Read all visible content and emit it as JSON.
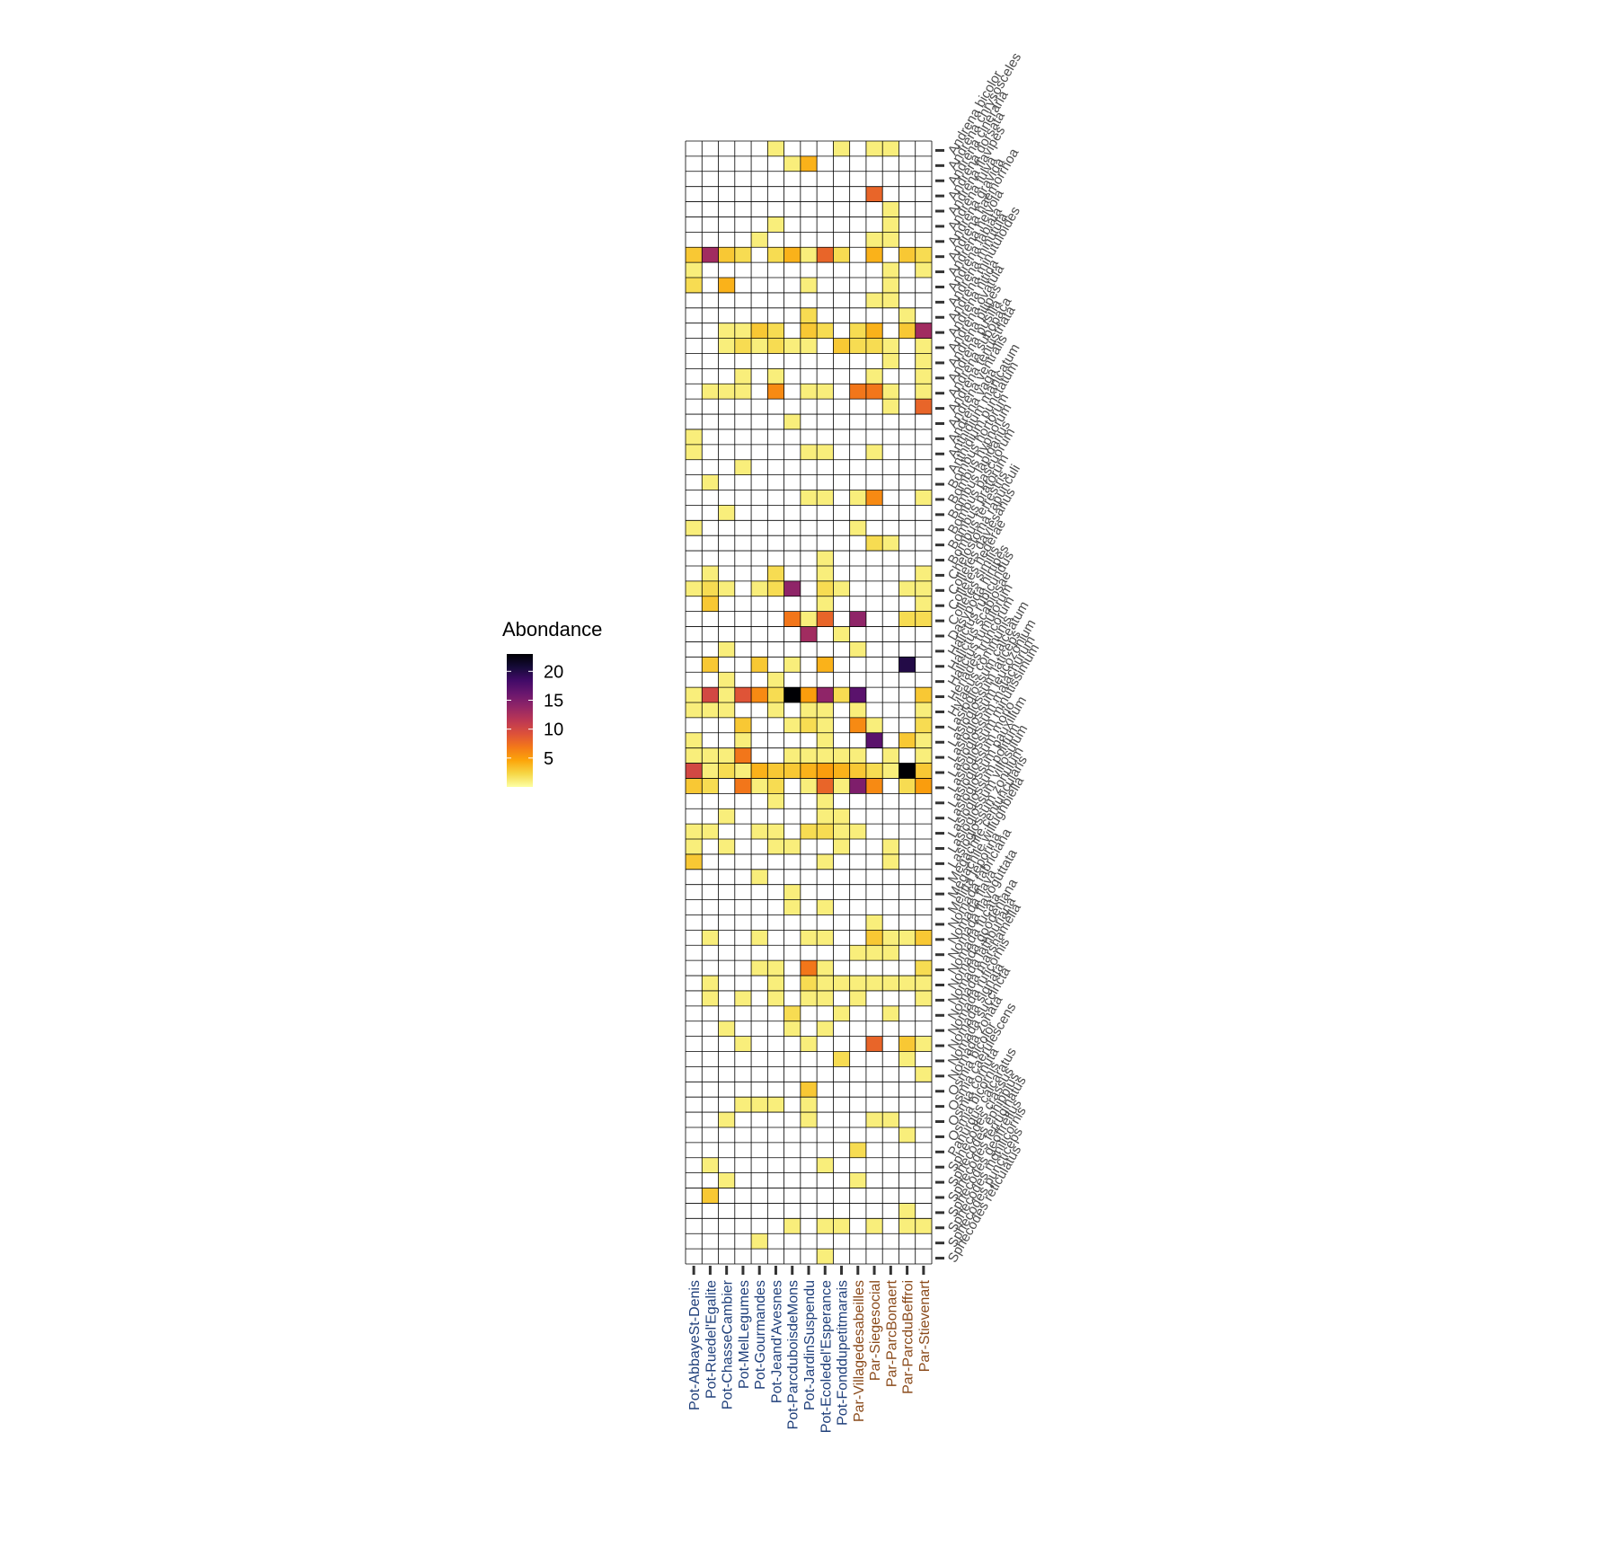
{
  "chart_data": {
    "type": "heatmap",
    "title": "",
    "xlabel": "",
    "ylabel": "",
    "legend": {
      "title": "Abondance",
      "ticks": [
        5,
        10,
        15,
        20
      ],
      "range": [
        0,
        23
      ],
      "placement": "left",
      "colors": [
        "#fcffa4",
        "#f6d746",
        "#fca50a",
        "#f37819",
        "#dd513a",
        "#bc3754",
        "#932667",
        "#6a176e",
        "#420a68",
        "#160b39",
        "#000004"
      ]
    },
    "cell_empty_color": "#ffffff",
    "grid_color": "#000000",
    "x_label_colors": {
      "Pot": "#1f3f7a",
      "Par": "#8a4a1a"
    },
    "columns": [
      "Pot-AbbayeSt-Denis",
      "Pot-Ruedel'Egalite",
      "Pot-ChasseCambier",
      "Pot-MelLegumes",
      "Pot-Gourmandes",
      "Pot-Jeand'Avesnes",
      "Pot-ParcduboisdeMons",
      "Pot-JardinSuspendu",
      "Pot-Ecoledel'Esperance",
      "Pot-Fonddupetitmarais",
      "Par-Villagedesabeilles",
      "Par-Siegesocial",
      "Par-ParcBonaert",
      "Par-ParcduBeffroi",
      "Par-Stievenart"
    ],
    "rows": [
      "Andrena bicolor",
      "Andrena chrysosceles",
      "Andrena cineraria",
      "Andrena dorsata",
      "Andrena flavipes",
      "Andrena fulva",
      "Andrena gravida",
      "Andrena haemorrhoa",
      "Andrena helvola",
      "Andrena labiata",
      "Andrena minutula",
      "Andrena minutuloides",
      "Andrena nitida",
      "Andrena ovatula",
      "Andrena pilipes",
      "Andrena pusilla",
      "Andrena subopaca",
      "Andrena tenuistriata",
      "Andrena ventralis",
      "Andrena vaga",
      "Anthidium manicatum",
      "Anthidium punctatum",
      "Bombus hortorum",
      "Bombus hypnorum",
      "Bombus lapidarius",
      "Bombus pascuorum",
      "Bombus pratorum",
      "Bombus terrestris",
      "Chelostoma rapunculi",
      "Colletes daviesanus",
      "Colletes hederae",
      "Colletes similis",
      "Dasypoda hirtipes",
      "Halictus rubicundus",
      "Halictus scabiosae",
      "Halictus tumulorum",
      "Heriades truncorum",
      "Hylaeus communis",
      "Lasioglossum calceatum",
      "Lasioglossum laticeps",
      "Lasioglossum leucozonium",
      "Lasioglossum malachurum",
      "Lasioglossum minutissimum",
      "Lasioglossum morio",
      "Lasioglossum pauxillum",
      "Lasioglossum politum",
      "Lasioglossum villosulum",
      "Lasioglossum zonulum",
      "Megachile centuncularis",
      "Megachile willughbiella",
      "Melitta leporina",
      "Nomada fabriciana",
      "Nomada flava",
      "Nomada flavoguttata",
      "Nomada fucata",
      "Nomada goodeniana",
      "Nomada lathburiana",
      "Nomada marshamella",
      "Nomada ruficornis",
      "Nomada signata",
      "Nomada succincta",
      "Nomada zonata",
      "Osmia bicolor",
      "Osmia caerulescens",
      "Osmia cornuta",
      "Osmia bicornis",
      "Panurgus calcaratus",
      "Sphecodes crassus",
      "Sphecodes ephippius",
      "Sphecodes ferruginatus",
      "Sphecodes geoffrellus",
      "Sphecodes monilicornis",
      "Sphecodes puncticeps",
      "Sphecodes reticulatus"
    ],
    "cells": [
      [
        0,
        5,
        1
      ],
      [
        0,
        9,
        1
      ],
      [
        0,
        11,
        1
      ],
      [
        0,
        12,
        1
      ],
      [
        1,
        6,
        1
      ],
      [
        1,
        7,
        4
      ],
      [
        3,
        11,
        8
      ],
      [
        4,
        12,
        1
      ],
      [
        5,
        5,
        1
      ],
      [
        5,
        12,
        1
      ],
      [
        6,
        4,
        1
      ],
      [
        6,
        11,
        1
      ],
      [
        6,
        12,
        1
      ],
      [
        7,
        0,
        3
      ],
      [
        7,
        1,
        13
      ],
      [
        7,
        2,
        3
      ],
      [
        7,
        3,
        2
      ],
      [
        7,
        5,
        2
      ],
      [
        7,
        6,
        4
      ],
      [
        7,
        7,
        1
      ],
      [
        7,
        8,
        8
      ],
      [
        7,
        9,
        2
      ],
      [
        7,
        11,
        4
      ],
      [
        7,
        13,
        3
      ],
      [
        7,
        14,
        2
      ],
      [
        8,
        0,
        1
      ],
      [
        8,
        12,
        1
      ],
      [
        8,
        14,
        1
      ],
      [
        9,
        0,
        2
      ],
      [
        9,
        2,
        4
      ],
      [
        9,
        7,
        1
      ],
      [
        9,
        12,
        1
      ],
      [
        10,
        11,
        1
      ],
      [
        10,
        12,
        1
      ],
      [
        11,
        7,
        2
      ],
      [
        11,
        13,
        1
      ],
      [
        12,
        2,
        1
      ],
      [
        12,
        3,
        1
      ],
      [
        12,
        4,
        3
      ],
      [
        12,
        5,
        2
      ],
      [
        12,
        7,
        3
      ],
      [
        12,
        8,
        2
      ],
      [
        12,
        10,
        2
      ],
      [
        12,
        11,
        4
      ],
      [
        12,
        13,
        3
      ],
      [
        12,
        14,
        13
      ],
      [
        13,
        2,
        1
      ],
      [
        13,
        3,
        2
      ],
      [
        13,
        4,
        1
      ],
      [
        13,
        5,
        2
      ],
      [
        13,
        6,
        1
      ],
      [
        13,
        7,
        1
      ],
      [
        13,
        9,
        3
      ],
      [
        13,
        10,
        2
      ],
      [
        13,
        11,
        2
      ],
      [
        13,
        12,
        1
      ],
      [
        13,
        14,
        1
      ],
      [
        14,
        0,
        0
      ],
      [
        14,
        12,
        1
      ],
      [
        14,
        14,
        1
      ],
      [
        15,
        3,
        1
      ],
      [
        15,
        5,
        1
      ],
      [
        15,
        11,
        1
      ],
      [
        15,
        14,
        1
      ],
      [
        16,
        1,
        1
      ],
      [
        16,
        2,
        1
      ],
      [
        16,
        3,
        1
      ],
      [
        16,
        5,
        6
      ],
      [
        16,
        7,
        1
      ],
      [
        16,
        8,
        1
      ],
      [
        16,
        10,
        7
      ],
      [
        16,
        11,
        7
      ],
      [
        16,
        12,
        1
      ],
      [
        16,
        14,
        1
      ],
      [
        17,
        12,
        1
      ],
      [
        17,
        14,
        8
      ],
      [
        18,
        6,
        1
      ],
      [
        19,
        0,
        1
      ],
      [
        20,
        0,
        1
      ],
      [
        20,
        7,
        1
      ],
      [
        20,
        8,
        1
      ],
      [
        20,
        11,
        1
      ],
      [
        21,
        3,
        1
      ],
      [
        22,
        1,
        1
      ],
      [
        23,
        7,
        1
      ],
      [
        23,
        8,
        1
      ],
      [
        23,
        10,
        1
      ],
      [
        23,
        11,
        6
      ],
      [
        23,
        14,
        1
      ],
      [
        24,
        2,
        1
      ],
      [
        25,
        0,
        1
      ],
      [
        25,
        10,
        1
      ],
      [
        26,
        11,
        2
      ],
      [
        26,
        12,
        1
      ],
      [
        27,
        8,
        1
      ],
      [
        28,
        1,
        1
      ],
      [
        28,
        5,
        2
      ],
      [
        28,
        8,
        1
      ],
      [
        28,
        14,
        1
      ],
      [
        29,
        0,
        1
      ],
      [
        29,
        1,
        2
      ],
      [
        29,
        2,
        1
      ],
      [
        29,
        4,
        1
      ],
      [
        29,
        5,
        2
      ],
      [
        29,
        6,
        14
      ],
      [
        29,
        8,
        2
      ],
      [
        29,
        9,
        1
      ],
      [
        29,
        13,
        1
      ],
      [
        29,
        14,
        1
      ],
      [
        30,
        1,
        3
      ],
      [
        30,
        8,
        1
      ],
      [
        30,
        14,
        1
      ],
      [
        31,
        6,
        7
      ],
      [
        31,
        7,
        1
      ],
      [
        31,
        8,
        8
      ],
      [
        31,
        10,
        14
      ],
      [
        31,
        13,
        2
      ],
      [
        31,
        14,
        2
      ],
      [
        32,
        7,
        13
      ],
      [
        32,
        9,
        1
      ],
      [
        33,
        2,
        1
      ],
      [
        33,
        10,
        1
      ],
      [
        34,
        1,
        3
      ],
      [
        34,
        4,
        3
      ],
      [
        34,
        6,
        1
      ],
      [
        34,
        8,
        4
      ],
      [
        34,
        13,
        20
      ],
      [
        35,
        2,
        1
      ],
      [
        35,
        5,
        1
      ],
      [
        36,
        0,
        1
      ],
      [
        36,
        1,
        10
      ],
      [
        36,
        2,
        1
      ],
      [
        36,
        3,
        9
      ],
      [
        36,
        4,
        6
      ],
      [
        36,
        5,
        2
      ],
      [
        36,
        6,
        23
      ],
      [
        36,
        7,
        5
      ],
      [
        36,
        8,
        14
      ],
      [
        36,
        9,
        2
      ],
      [
        36,
        10,
        17
      ],
      [
        36,
        14,
        3
      ],
      [
        37,
        0,
        1
      ],
      [
        37,
        1,
        1
      ],
      [
        37,
        2,
        1
      ],
      [
        37,
        5,
        1
      ],
      [
        37,
        7,
        1
      ],
      [
        37,
        8,
        1
      ],
      [
        37,
        10,
        1
      ],
      [
        37,
        14,
        1
      ],
      [
        38,
        3,
        3
      ],
      [
        38,
        6,
        1
      ],
      [
        38,
        7,
        2
      ],
      [
        38,
        8,
        1
      ],
      [
        38,
        10,
        6
      ],
      [
        38,
        11,
        1
      ],
      [
        38,
        14,
        2
      ],
      [
        39,
        0,
        1
      ],
      [
        39,
        3,
        1
      ],
      [
        39,
        8,
        1
      ],
      [
        39,
        11,
        17
      ],
      [
        39,
        13,
        3
      ],
      [
        39,
        14,
        1
      ],
      [
        40,
        0,
        1
      ],
      [
        40,
        1,
        1
      ],
      [
        40,
        2,
        1
      ],
      [
        40,
        3,
        7
      ],
      [
        40,
        6,
        1
      ],
      [
        40,
        7,
        1
      ],
      [
        40,
        8,
        1
      ],
      [
        40,
        9,
        1
      ],
      [
        40,
        10,
        1
      ],
      [
        40,
        12,
        1
      ],
      [
        40,
        14,
        1
      ],
      [
        41,
        0,
        10
      ],
      [
        41,
        1,
        1
      ],
      [
        41,
        2,
        2
      ],
      [
        41,
        3,
        1
      ],
      [
        41,
        4,
        4
      ],
      [
        41,
        5,
        3
      ],
      [
        41,
        6,
        3
      ],
      [
        41,
        7,
        4
      ],
      [
        41,
        8,
        5
      ],
      [
        41,
        9,
        4
      ],
      [
        41,
        10,
        3
      ],
      [
        41,
        11,
        2
      ],
      [
        41,
        12,
        1
      ],
      [
        41,
        13,
        24
      ],
      [
        41,
        14,
        3
      ],
      [
        42,
        0,
        3
      ],
      [
        42,
        1,
        2
      ],
      [
        42,
        3,
        7
      ],
      [
        42,
        4,
        1
      ],
      [
        42,
        5,
        2
      ],
      [
        42,
        7,
        1
      ],
      [
        42,
        8,
        8
      ],
      [
        42,
        9,
        1
      ],
      [
        42,
        10,
        15
      ],
      [
        42,
        11,
        6
      ],
      [
        42,
        13,
        2
      ],
      [
        42,
        14,
        5
      ],
      [
        43,
        5,
        1
      ],
      [
        43,
        8,
        1
      ],
      [
        44,
        2,
        1
      ],
      [
        44,
        8,
        1
      ],
      [
        44,
        9,
        1
      ],
      [
        45,
        0,
        1
      ],
      [
        45,
        1,
        1
      ],
      [
        45,
        4,
        1
      ],
      [
        45,
        5,
        1
      ],
      [
        45,
        7,
        2
      ],
      [
        45,
        8,
        2
      ],
      [
        45,
        9,
        1
      ],
      [
        45,
        10,
        1
      ],
      [
        46,
        0,
        1
      ],
      [
        46,
        2,
        1
      ],
      [
        46,
        5,
        1
      ],
      [
        46,
        6,
        1
      ],
      [
        46,
        9,
        1
      ],
      [
        46,
        12,
        1
      ],
      [
        47,
        0,
        3
      ],
      [
        47,
        8,
        1
      ],
      [
        47,
        12,
        1
      ],
      [
        48,
        4,
        1
      ],
      [
        49,
        6,
        1
      ],
      [
        50,
        6,
        1
      ],
      [
        50,
        8,
        1
      ],
      [
        51,
        11,
        1
      ],
      [
        52,
        1,
        1
      ],
      [
        52,
        4,
        1
      ],
      [
        52,
        7,
        1
      ],
      [
        52,
        8,
        1
      ],
      [
        52,
        11,
        3
      ],
      [
        52,
        12,
        1
      ],
      [
        52,
        13,
        1
      ],
      [
        52,
        14,
        3
      ],
      [
        53,
        10,
        1
      ],
      [
        53,
        11,
        1
      ],
      [
        53,
        12,
        1
      ],
      [
        54,
        4,
        1
      ],
      [
        54,
        5,
        1
      ],
      [
        54,
        7,
        7
      ],
      [
        54,
        8,
        1
      ],
      [
        54,
        14,
        2
      ],
      [
        55,
        1,
        1
      ],
      [
        55,
        5,
        1
      ],
      [
        55,
        7,
        2
      ],
      [
        55,
        8,
        1
      ],
      [
        55,
        9,
        1
      ],
      [
        55,
        10,
        1
      ],
      [
        55,
        11,
        1
      ],
      [
        55,
        12,
        1
      ],
      [
        55,
        13,
        1
      ],
      [
        55,
        14,
        1
      ],
      [
        56,
        1,
        1
      ],
      [
        56,
        3,
        1
      ],
      [
        56,
        5,
        1
      ],
      [
        56,
        7,
        1
      ],
      [
        56,
        8,
        1
      ],
      [
        56,
        10,
        1
      ],
      [
        56,
        14,
        1
      ],
      [
        57,
        6,
        2
      ],
      [
        57,
        9,
        1
      ],
      [
        57,
        12,
        1
      ],
      [
        58,
        2,
        1
      ],
      [
        58,
        6,
        1
      ],
      [
        58,
        8,
        1
      ],
      [
        59,
        3,
        1
      ],
      [
        59,
        7,
        1
      ],
      [
        59,
        11,
        8
      ],
      [
        59,
        13,
        3
      ],
      [
        59,
        14,
        1
      ],
      [
        60,
        9,
        2
      ],
      [
        60,
        13,
        1
      ],
      [
        61,
        14,
        1
      ],
      [
        62,
        7,
        3
      ],
      [
        63,
        3,
        1
      ],
      [
        63,
        4,
        1
      ],
      [
        63,
        5,
        1
      ],
      [
        63,
        7,
        1
      ],
      [
        64,
        2,
        1
      ],
      [
        64,
        7,
        1
      ],
      [
        64,
        11,
        1
      ],
      [
        64,
        12,
        1
      ],
      [
        65,
        13,
        1
      ],
      [
        66,
        10,
        2
      ],
      [
        67,
        1,
        1
      ],
      [
        67,
        8,
        1
      ],
      [
        68,
        2,
        1
      ],
      [
        68,
        10,
        1
      ],
      [
        69,
        1,
        3
      ],
      [
        70,
        13,
        1
      ],
      [
        71,
        6,
        1
      ],
      [
        71,
        8,
        1
      ],
      [
        71,
        9,
        1
      ],
      [
        71,
        11,
        1
      ],
      [
        71,
        13,
        1
      ],
      [
        71,
        14,
        1
      ],
      [
        72,
        4,
        1
      ],
      [
        73,
        8,
        1
      ]
    ]
  }
}
